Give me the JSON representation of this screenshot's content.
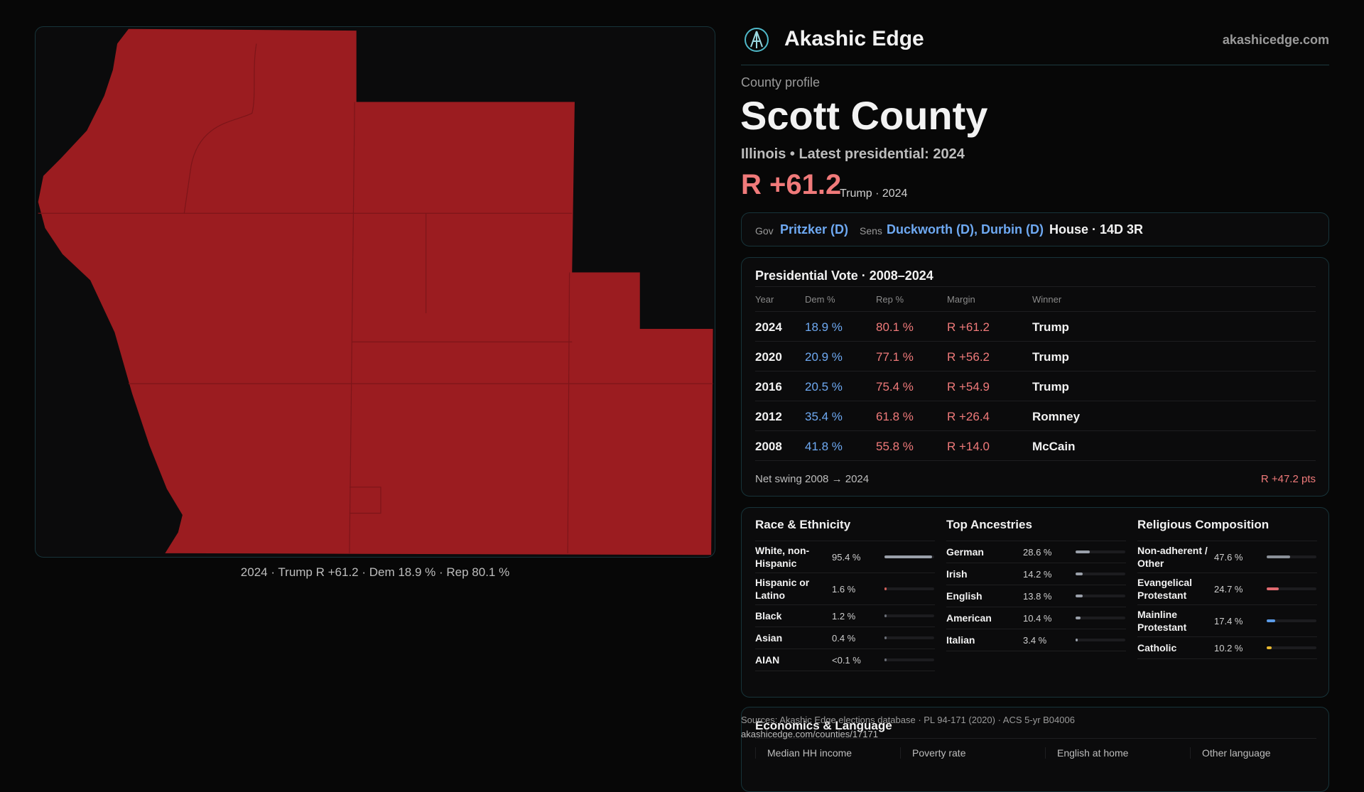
{
  "header": {
    "brand": "Akashic Edge",
    "site": "akashicedge.com"
  },
  "map": {
    "caption": "2024 · Trump R +61.2 · Dem 18.9 % · Rep 80.1 %"
  },
  "profile": {
    "kicker": "County profile",
    "name": "Scott County",
    "subtitle": "Illinois • Latest presidential: 2024",
    "margin": "R +61.2",
    "margin_note": "Trump · 2024"
  },
  "officials": {
    "gov_label": "Gov",
    "gov": "Pritzker (D)",
    "sens_label": "Sens",
    "sens": "Duckworth (D), Durbin (D)",
    "house": "House · 14D 3R"
  },
  "presidential": {
    "title": "Presidential Vote · 2008–2024",
    "columns": [
      "Year",
      "Dem %",
      "Rep %",
      "Margin",
      "Winner"
    ],
    "rows": [
      [
        "2024",
        "18.9 %",
        "80.1 %",
        "R +61.2",
        "Trump"
      ],
      [
        "2020",
        "20.9 %",
        "77.1 %",
        "R +56.2",
        "Trump"
      ],
      [
        "2016",
        "20.5 %",
        "75.4 %",
        "R +54.9",
        "Trump"
      ],
      [
        "2012",
        "35.4 %",
        "61.8 %",
        "R +26.4",
        "Romney"
      ],
      [
        "2008",
        "41.8 %",
        "55.8 %",
        "R +14.0",
        "McCain"
      ]
    ],
    "swing_label": "Net swing 2008 → 2024",
    "swing": "R +47.2 pts"
  },
  "demographics": [
    {
      "title": "Race & Ethnicity",
      "rows": [
        {
          "label": "White, non-Hispanic",
          "value": 95.4,
          "value_label": "95.4 %",
          "color": "#9aa0aa"
        },
        {
          "label": "Hispanic or Latino",
          "value": 1.6,
          "value_label": "1.6 %",
          "color": "#d0605a"
        },
        {
          "label": "Black",
          "value": 1.2,
          "value_label": "1.2 %",
          "color": "#6a6e76"
        },
        {
          "label": "Asian",
          "value": 0.4,
          "value_label": "0.4 %",
          "color": "#6a6e76"
        },
        {
          "label": "AIAN",
          "value": 0.05,
          "value_label": "<0.1 %",
          "color": "#6a6e76"
        }
      ]
    },
    {
      "title": "Top Ancestries",
      "rows": [
        {
          "label": "German",
          "value": 28.6,
          "value_label": "28.6 %",
          "color": "#9aa0aa"
        },
        {
          "label": "Irish",
          "value": 14.2,
          "value_label": "14.2 %",
          "color": "#9aa0aa"
        },
        {
          "label": "English",
          "value": 13.8,
          "value_label": "13.8 %",
          "color": "#9aa0aa"
        },
        {
          "label": "American",
          "value": 10.4,
          "value_label": "10.4 %",
          "color": "#9aa0aa"
        },
        {
          "label": "Italian",
          "value": 3.4,
          "value_label": "3.4 %",
          "color": "#9aa0aa"
        }
      ]
    },
    {
      "title": "Religious Composition",
      "rows": [
        {
          "label": "Non-adherent / Other",
          "value": 47.6,
          "value_label": "47.6 %",
          "color": "#8a9098"
        },
        {
          "label": "Evangelical Protestant",
          "value": 24.7,
          "value_label": "24.7 %",
          "color": "#e06a70"
        },
        {
          "label": "Mainline Protestant",
          "value": 17.4,
          "value_label": "17.4 %",
          "color": "#5b9be8"
        },
        {
          "label": "Catholic",
          "value": 10.2,
          "value_label": "10.2 %",
          "color": "#e8b830"
        }
      ]
    }
  ],
  "economics": {
    "title": "Economics & Language",
    "columns": [
      "Median HH income",
      "Poverty rate",
      "English at home",
      "Other language"
    ]
  },
  "footer": {
    "sources": "Sources: Akashic Edge elections database · PL 94-171 (2020) · ACS 5-yr B04006",
    "url": "akashicedge.com/counties/17171"
  }
}
